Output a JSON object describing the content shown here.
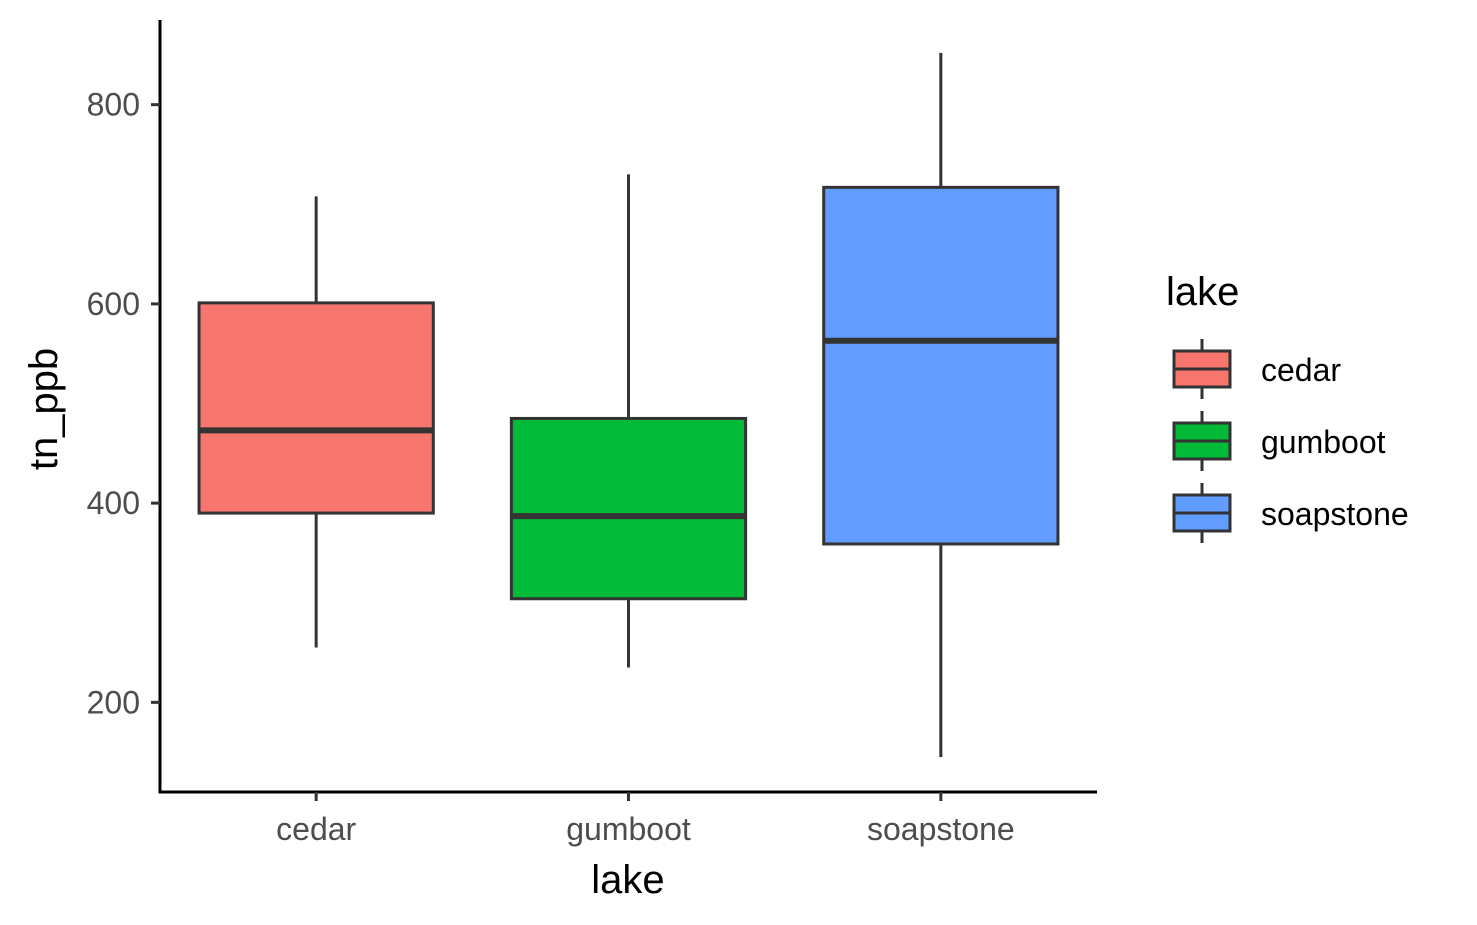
{
  "chart_data": {
    "type": "boxplot",
    "xlabel": "lake",
    "ylabel": "tn_ppb",
    "categories": [
      "cedar",
      "gumboot",
      "soapstone"
    ],
    "boxes": [
      {
        "category": "cedar",
        "min": 255,
        "q1": 390,
        "median": 473,
        "q3": 601,
        "max": 708
      },
      {
        "category": "gumboot",
        "min": 235,
        "q1": 304,
        "median": 387,
        "q3": 485,
        "max": 730
      },
      {
        "category": "soapstone",
        "min": 145,
        "q1": 359,
        "median": 563,
        "q3": 717,
        "max": 852
      }
    ],
    "ylim": [
      110,
      885
    ],
    "yticks": [
      200,
      400,
      600,
      800
    ],
    "grid": false,
    "legend": {
      "title": "lake",
      "position": "right",
      "entries": [
        "cedar",
        "gumboot",
        "soapstone"
      ]
    },
    "colors": {
      "cedar": "#F8766D",
      "gumboot": "#00BA38",
      "soapstone": "#619CFF"
    }
  }
}
